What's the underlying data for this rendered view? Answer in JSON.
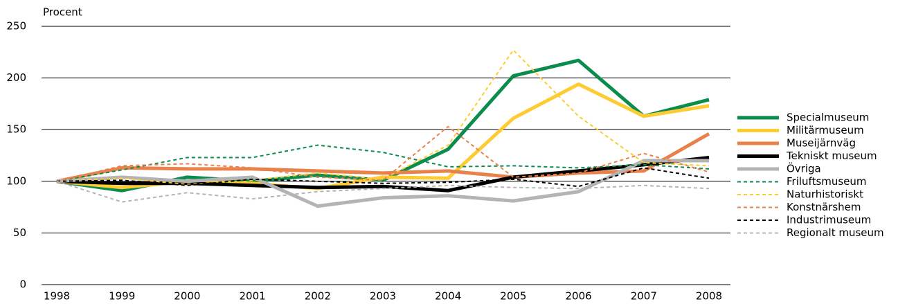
{
  "chart_data": {
    "type": "line",
    "y_label": "Procent",
    "categories": [
      "1998",
      "1999",
      "2000",
      "2001",
      "2002",
      "2003",
      "2004",
      "2005",
      "2006",
      "2007",
      "2008"
    ],
    "ylim": [
      0,
      250
    ],
    "yticks": [
      0,
      50,
      100,
      150,
      200,
      250
    ],
    "grid": true,
    "legend": "right",
    "series": [
      {
        "name": "Specialmuseum",
        "color": "#0b8c4c",
        "style": "solid",
        "values": [
          100,
          91,
          104,
          100,
          106,
          101,
          131,
          202,
          217,
          163,
          179
        ]
      },
      {
        "name": "Militärmuseum",
        "color": "#fecb32",
        "style": "solid",
        "values": [
          100,
          94,
          100,
          98,
          93,
          104,
          103,
          161,
          194,
          163,
          173
        ]
      },
      {
        "name": "Museijärnväg",
        "color": "#e9814b",
        "style": "solid",
        "values": [
          100,
          113,
          112,
          112,
          110,
          108,
          110,
          104,
          108,
          110,
          146
        ]
      },
      {
        "name": "Tekniskt museum",
        "color": "#000000",
        "style": "solid",
        "values": [
          100,
          98,
          98,
          96,
          94,
          95,
          91,
          104,
          110,
          116,
          123
        ]
      },
      {
        "name": "Övriga",
        "color": "#b4b4b4",
        "style": "solid",
        "values": [
          100,
          104,
          100,
          104,
          76,
          84,
          86,
          81,
          90,
          120,
          120
        ]
      },
      {
        "name": "Friluftsmuseum",
        "color": "#0b8c4c",
        "style": "dashed",
        "values": [
          100,
          111,
          123,
          123,
          135,
          128,
          114,
          115,
          113,
          116,
          112
        ]
      },
      {
        "name": "Naturhistoriskt",
        "color": "#fecb32",
        "style": "dashed",
        "values": [
          100,
          103,
          97,
          101,
          108,
          102,
          135,
          227,
          163,
          118,
          115
        ]
      },
      {
        "name": "Konstnärshem",
        "color": "#e9814b",
        "style": "dashed",
        "values": [
          100,
          115,
          117,
          113,
          104,
          101,
          153,
          104,
          108,
          127,
          109
        ]
      },
      {
        "name": "Industrimuseum",
        "color": "#000000",
        "style": "dashed",
        "values": [
          100,
          101,
          96,
          102,
          100,
          98,
          99,
          102,
          95,
          113,
          103
        ]
      },
      {
        "name": "Regionalt museum",
        "color": "#b4b4b4",
        "style": "dashed",
        "values": [
          100,
          80,
          89,
          83,
          90,
          93,
          96,
          94,
          93,
          96,
          93
        ]
      }
    ]
  }
}
